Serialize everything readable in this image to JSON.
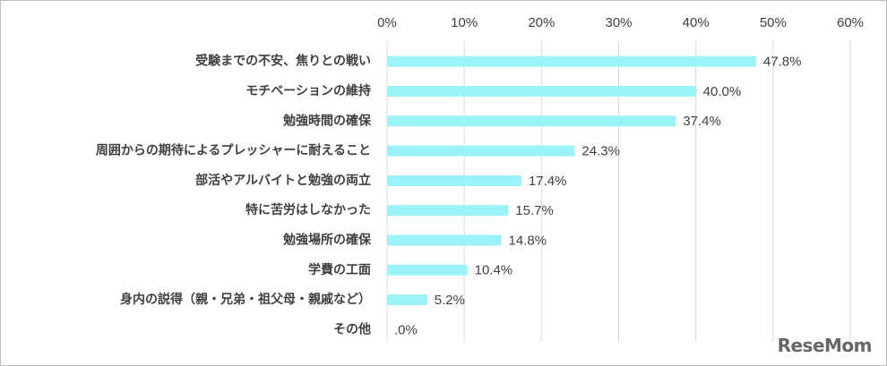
{
  "chart_data": {
    "type": "bar",
    "orientation": "horizontal",
    "categories": [
      "受験までの不安、焦りとの戦い",
      "モチベーションの維持",
      "勉強時間の確保",
      "周囲からの期待によるプレッシャーに耐えること",
      "部活やアルバイトと勉強の両立",
      "特に苦労はしなかった",
      "勉強場所の確保",
      "学費の工面",
      "身内の説得（親・兄弟・祖父母・親戚など）",
      "その他"
    ],
    "values": [
      47.8,
      40.0,
      37.4,
      24.3,
      17.4,
      15.7,
      14.8,
      10.4,
      5.2,
      0.0
    ],
    "data_labels": [
      "47.8%",
      "40.0%",
      "37.4%",
      "24.3%",
      "17.4%",
      "15.7%",
      "14.8%",
      "10.4%",
      "5.2%",
      ".0%"
    ],
    "x_ticks": [
      "0%",
      "10%",
      "20%",
      "30%",
      "40%",
      "50%",
      "60%"
    ],
    "xlim": [
      0,
      60
    ],
    "xaxis_position": "top",
    "grid": true,
    "bar_color": "#99f3f7",
    "title": "",
    "xlabel": "",
    "ylabel": ""
  },
  "watermark": "ReseMom"
}
